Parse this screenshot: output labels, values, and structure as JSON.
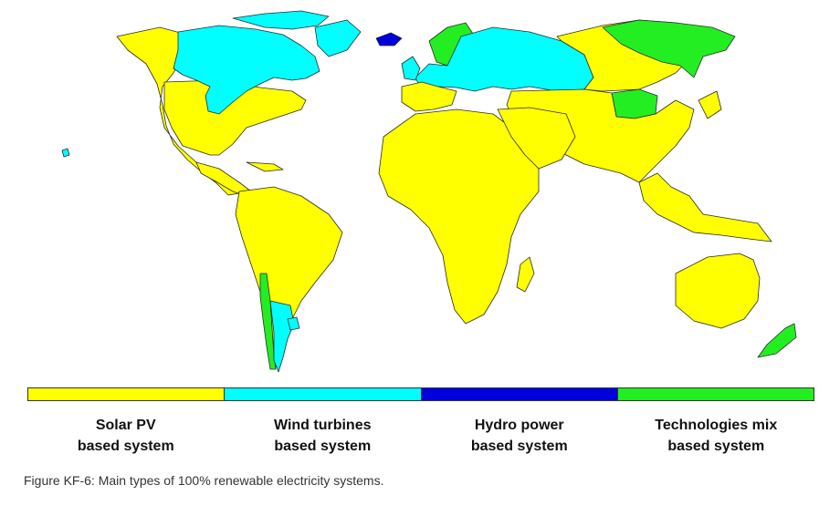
{
  "map": {
    "colors": {
      "solar": "#ffff00",
      "wind": "#00ffff",
      "hydro": "#0000dd",
      "mix": "#22ee22"
    }
  },
  "legend": {
    "items": [
      {
        "line1": "Solar PV",
        "line2": "based system",
        "color": "#ffff00"
      },
      {
        "line1": "Wind turbines",
        "line2": "based system",
        "color": "#00ffff"
      },
      {
        "line1": "Hydro power",
        "line2": "based system",
        "color": "#0000dd"
      },
      {
        "line1": "Technologies mix",
        "line2": "based system",
        "color": "#22ee22"
      }
    ]
  },
  "caption": "Figure KF-6: Main types of 100% renewable electricity systems."
}
